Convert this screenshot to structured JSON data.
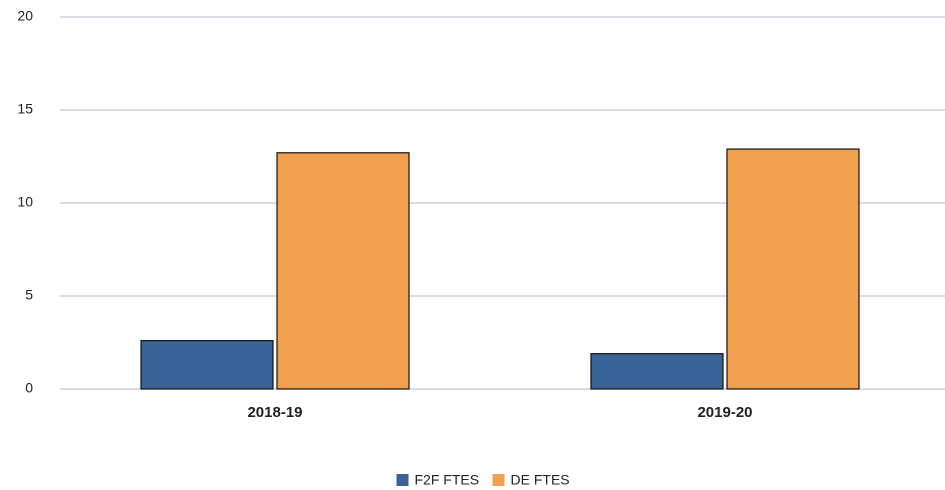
{
  "chart_data": {
    "type": "bar",
    "categories": [
      "2018-19",
      "2019-20"
    ],
    "series": [
      {
        "name": "F2F FTES",
        "color": "#3a6398",
        "values": [
          2.6,
          1.9
        ]
      },
      {
        "name": "DE FTES",
        "color": "#f0a04f",
        "values": [
          12.7,
          12.9
        ]
      }
    ],
    "ylim": [
      0,
      20
    ],
    "yticks": [
      0,
      5,
      10,
      15,
      20
    ],
    "grid": true,
    "legend": "bottom"
  }
}
